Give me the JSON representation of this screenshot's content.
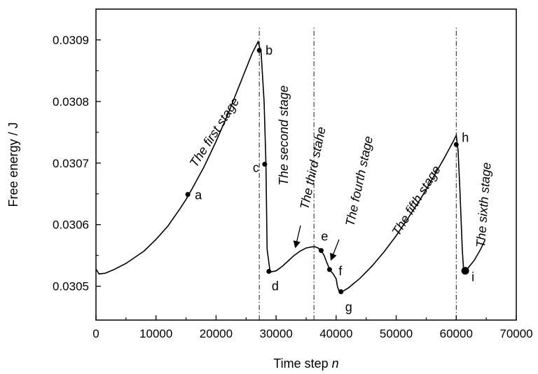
{
  "chart_data": {
    "type": "line",
    "xlabel": "Time step",
    "xlabel_var": "n",
    "ylabel": "Free energy / J",
    "xlim": [
      0,
      70000
    ],
    "ylim": [
      0.030445,
      0.03095
    ],
    "x_ticks": [
      0,
      10000,
      20000,
      30000,
      40000,
      50000,
      60000,
      70000
    ],
    "x_tick_labels": [
      "0",
      "10000",
      "20000",
      "30000",
      "40000",
      "50000",
      "60000",
      "70000"
    ],
    "y_ticks": [
      0.0305,
      0.0306,
      0.0307,
      0.0308,
      0.0309
    ],
    "y_tick_labels": [
      "0.0305",
      "0.0306",
      "0.0307",
      "0.0308",
      "0.0309"
    ],
    "grid": false,
    "series": [
      {
        "x": [
          0,
          500,
          1500,
          3000,
          5000,
          8000,
          10000,
          12000,
          14000,
          15000,
          16000,
          18000,
          20000,
          22000,
          24000,
          26000,
          27000,
          27500,
          28000,
          28300,
          28500,
          29000,
          30000,
          31000,
          32000,
          33000,
          34000,
          35000,
          36000,
          36500,
          37000,
          37500,
          38000,
          38500,
          39000,
          39500,
          40000,
          40200,
          40500,
          41000,
          42000,
          44000,
          46000,
          48000,
          50000,
          52000,
          54000,
          56000,
          57000,
          58000,
          59000,
          59500,
          60000,
          60300,
          60600,
          61000,
          61200,
          61500,
          62000,
          63000,
          64000,
          64800
        ],
        "y": [
          0.030528,
          0.03052,
          0.030521,
          0.030527,
          0.030537,
          0.030557,
          0.030576,
          0.030598,
          0.030626,
          0.030641,
          0.030658,
          0.030694,
          0.030735,
          0.03078,
          0.030829,
          0.030878,
          0.030897,
          0.03088,
          0.0308,
          0.0307,
          0.03056,
          0.030523,
          0.030525,
          0.030532,
          0.030541,
          0.03055,
          0.030557,
          0.030562,
          0.030564,
          0.030564,
          0.030562,
          0.030558,
          0.03055,
          0.030537,
          0.030526,
          0.03052,
          0.030512,
          0.0305,
          0.030492,
          0.030491,
          0.030497,
          0.030513,
          0.030533,
          0.030556,
          0.030582,
          0.030611,
          0.030641,
          0.030674,
          0.030691,
          0.030708,
          0.030726,
          0.030735,
          0.030745,
          0.03072,
          0.03066,
          0.03056,
          0.03053,
          0.030525,
          0.03053,
          0.030542,
          0.030559,
          0.030575
        ]
      }
    ],
    "markers": [
      {
        "label": "a",
        "x": 15300,
        "y": 0.030649
      },
      {
        "label": "b",
        "x": 27200,
        "y": 0.030883
      },
      {
        "label": "c",
        "x": 28100,
        "y": 0.030698
      },
      {
        "label": "d",
        "x": 28800,
        "y": 0.030524
      },
      {
        "label": "e",
        "x": 37500,
        "y": 0.030558
      },
      {
        "label": "f",
        "x": 38900,
        "y": 0.030527
      },
      {
        "label": "g",
        "x": 40800,
        "y": 0.030491
      },
      {
        "label": "h",
        "x": 60000,
        "y": 0.03073
      },
      {
        "label": "i",
        "x": 61500,
        "y": 0.030525
      }
    ],
    "vlines_x": [
      27200,
      36300,
      60000
    ],
    "stage_labels": [
      "The first stage",
      "The second stage",
      "The third stahe",
      "The fourth stage",
      "The fifth stage",
      "The sixth stage"
    ]
  }
}
